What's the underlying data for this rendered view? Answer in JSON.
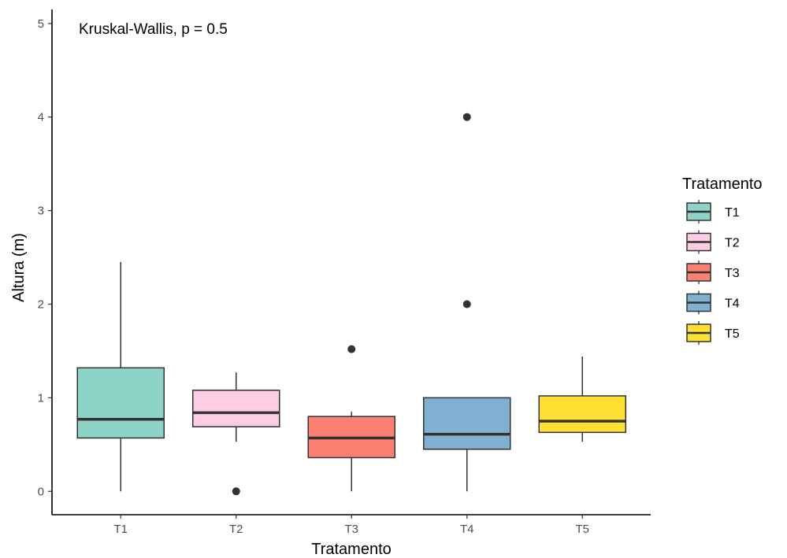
{
  "chart_data": {
    "type": "box",
    "annotation": "Kruskal-Wallis, p = 0.5",
    "xlabel": "Tratamento",
    "ylabel": "Altura (m)",
    "ylim": [
      -0.25,
      5.15
    ],
    "yticks": [
      0,
      1,
      2,
      3,
      4,
      5
    ],
    "categories": [
      "T1",
      "T2",
      "T3",
      "T4",
      "T5"
    ],
    "boxes": [
      {
        "category": "T1",
        "whisker_low": 0.0,
        "q1": 0.57,
        "median": 0.77,
        "q3": 1.32,
        "whisker_high": 2.45,
        "outliers": [],
        "color": "#8dd3c7"
      },
      {
        "category": "T2",
        "whisker_low": 0.53,
        "q1": 0.69,
        "median": 0.84,
        "q3": 1.08,
        "whisker_high": 1.27,
        "outliers": [
          0.0
        ],
        "color": "#fccde5"
      },
      {
        "category": "T3",
        "whisker_low": 0.0,
        "q1": 0.36,
        "median": 0.57,
        "q3": 0.8,
        "whisker_high": 0.85,
        "outliers": [
          1.52
        ],
        "color": "#fb8072"
      },
      {
        "category": "T4",
        "whisker_low": 0.0,
        "q1": 0.45,
        "median": 0.61,
        "q3": 1.0,
        "whisker_high": 1.0,
        "outliers": [
          2.0,
          4.0
        ],
        "color": "#80b1d3"
      },
      {
        "category": "T5",
        "whisker_low": 0.53,
        "q1": 0.63,
        "median": 0.75,
        "q3": 1.02,
        "whisker_high": 1.44,
        "outliers": [],
        "color": "#ffe033"
      }
    ],
    "legend": {
      "title": "Tratamento",
      "placement": "right",
      "entries": [
        {
          "label": "T1",
          "color": "#8dd3c7"
        },
        {
          "label": "T2",
          "color": "#fccde5"
        },
        {
          "label": "T3",
          "color": "#fb8072"
        },
        {
          "label": "T4",
          "color": "#80b1d3"
        },
        {
          "label": "T5",
          "color": "#ffe033"
        }
      ]
    },
    "grid": false
  }
}
